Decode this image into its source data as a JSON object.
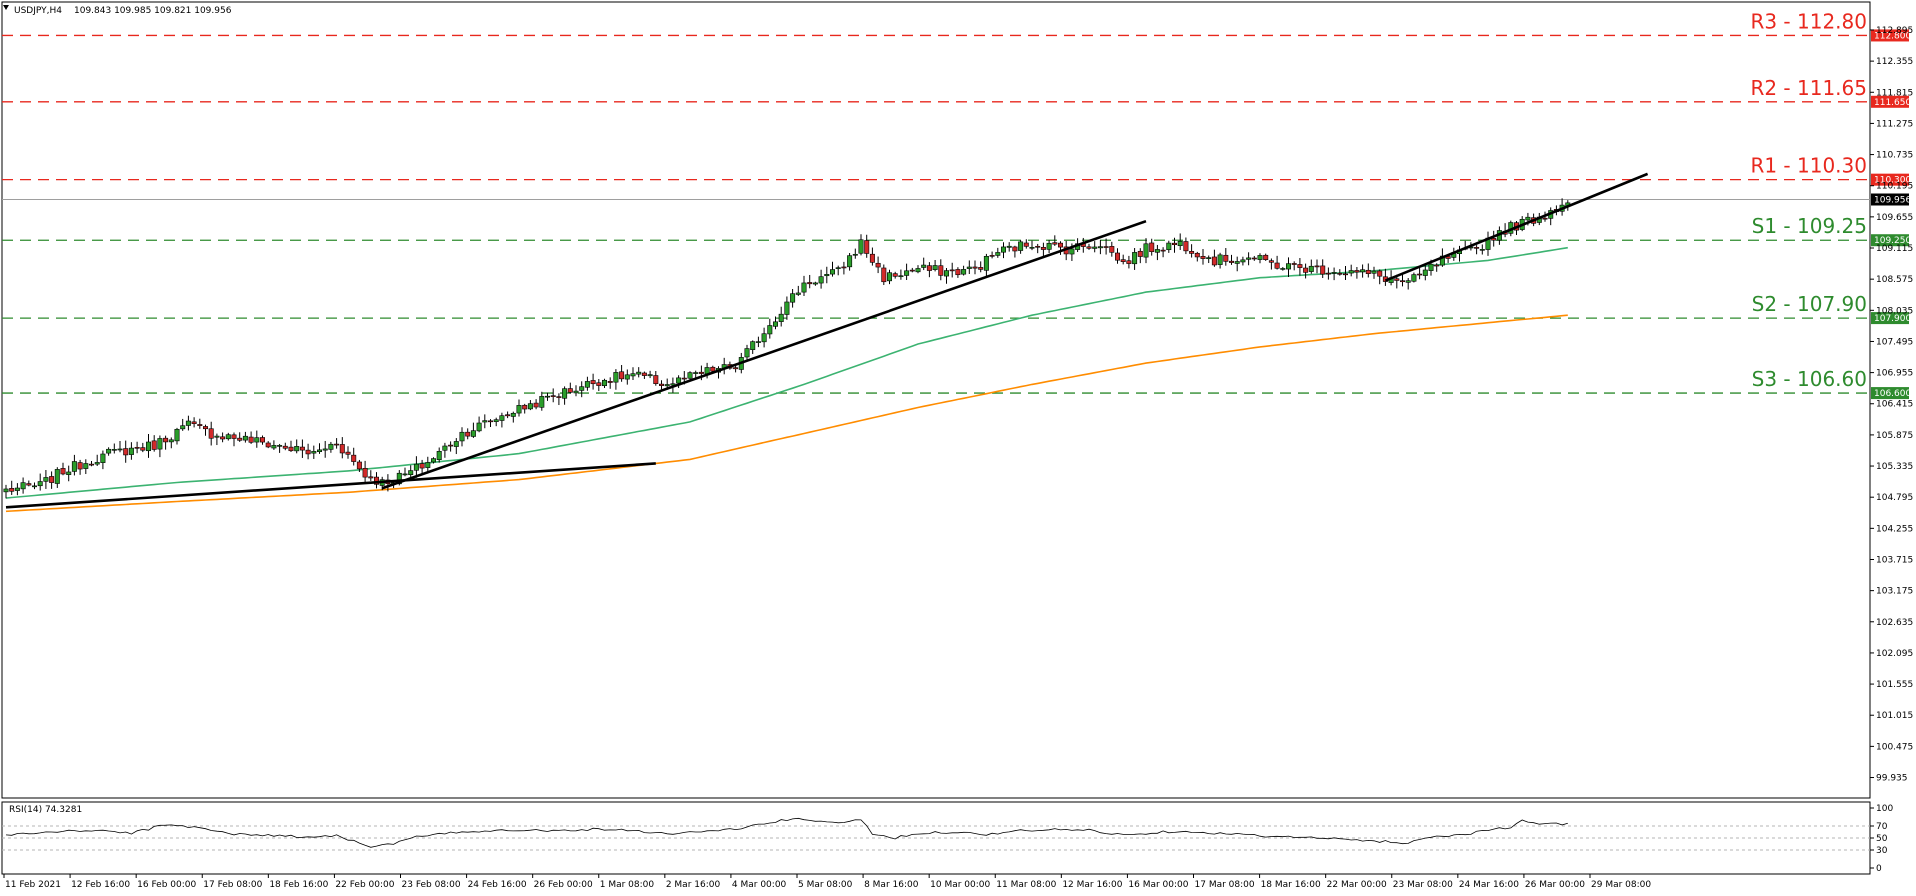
{
  "header": {
    "symbol_label": "USDJPY,H4",
    "ohlc_label": "109.843 109.985 109.821 109.956",
    "rsi_label": "RSI(14) 74.3281"
  },
  "colors": {
    "bull": "#2a9d2a",
    "bear": "#d22a2a",
    "resistance": "#e8281e",
    "support": "#2e8b2e",
    "ma_fast": "#3cb371",
    "ma_slow": "#ff8c00",
    "trendline": "#000000",
    "current_price_line": "#9e9e9e"
  },
  "chart_data": [
    {
      "type": "candlestick",
      "symbol": "USDJPY",
      "timeframe": "H4",
      "last_price": 109.956,
      "ylim": [
        99.58,
        113.38
      ],
      "y_ticks": [
        "112.895",
        "112.355",
        "111.815",
        "111.275",
        "110.735",
        "110.195",
        "109.655",
        "109.115",
        "108.575",
        "108.035",
        "107.495",
        "106.955",
        "106.415",
        "105.875",
        "105.335",
        "104.795",
        "104.255",
        "103.715",
        "103.175",
        "102.635",
        "102.095",
        "101.555",
        "101.015",
        "100.475",
        "99.935"
      ],
      "x_ticks": [
        "11 Feb 2021",
        "12 Feb 16:00",
        "16 Feb 00:00",
        "17 Feb 08:00",
        "18 Feb 16:00",
        "22 Feb 00:00",
        "23 Feb 08:00",
        "24 Feb 16:00",
        "26 Feb 00:00",
        "1 Mar 08:00",
        "2 Mar 16:00",
        "4 Mar 00:00",
        "5 Mar 08:00",
        "8 Mar 16:00",
        "10 Mar 00:00",
        "11 Mar 08:00",
        "12 Mar 16:00",
        "16 Mar 00:00",
        "17 Mar 08:00",
        "18 Mar 16:00",
        "22 Mar 00:00",
        "23 Mar 08:00",
        "24 Mar 16:00",
        "26 Mar 00:00",
        "29 Mar 08:00"
      ],
      "levels": [
        {
          "name": "R3",
          "label": "R3 - 112.80",
          "tag": "112.800",
          "price": 112.8,
          "kind": "resistance"
        },
        {
          "name": "R2",
          "label": "R2 - 111.65",
          "tag": "111.650",
          "price": 111.65,
          "kind": "resistance"
        },
        {
          "name": "R1",
          "label": "R1 - 110.30",
          "tag": "110.300",
          "price": 110.3,
          "kind": "resistance"
        },
        {
          "name": "S1",
          "label": "S1 - 109.25",
          "tag": "109.250",
          "price": 109.25,
          "kind": "support"
        },
        {
          "name": "S2",
          "label": "S2 - 107.90",
          "tag": "107.900",
          "price": 107.9,
          "kind": "support"
        },
        {
          "name": "S3",
          "label": "S3 - 106.60",
          "tag": "106.600",
          "price": 106.6,
          "kind": "support"
        }
      ],
      "current_price_tag": "109.956",
      "close_anchors": [
        [
          0,
          104.92
        ],
        [
          6,
          105.0
        ],
        [
          10,
          105.25
        ],
        [
          18,
          105.55
        ],
        [
          26,
          105.7
        ],
        [
          32,
          106.05
        ],
        [
          36,
          105.9
        ],
        [
          42,
          105.8
        ],
        [
          48,
          105.68
        ],
        [
          54,
          105.55
        ],
        [
          58,
          105.75
        ],
        [
          63,
          105.18
        ],
        [
          66,
          105.05
        ],
        [
          70,
          105.18
        ],
        [
          74,
          105.4
        ],
        [
          80,
          105.9
        ],
        [
          88,
          106.25
        ],
        [
          96,
          106.55
        ],
        [
          104,
          106.82
        ],
        [
          110,
          106.92
        ],
        [
          116,
          106.75
        ],
        [
          124,
          107.0
        ],
        [
          128,
          107.05
        ],
        [
          134,
          107.8
        ],
        [
          140,
          108.5
        ],
        [
          146,
          108.7
        ],
        [
          150,
          109.2
        ],
        [
          154,
          108.6
        ],
        [
          160,
          108.75
        ],
        [
          166,
          108.7
        ],
        [
          170,
          108.75
        ],
        [
          174,
          109.05
        ],
        [
          180,
          109.2
        ],
        [
          186,
          109.1
        ],
        [
          192,
          109.2
        ],
        [
          196,
          108.85
        ],
        [
          200,
          109.1
        ],
        [
          206,
          109.2
        ],
        [
          212,
          108.9
        ],
        [
          218,
          108.95
        ],
        [
          224,
          108.8
        ],
        [
          230,
          108.75
        ],
        [
          236,
          108.7
        ],
        [
          240,
          108.65
        ],
        [
          246,
          108.5
        ],
        [
          252,
          108.9
        ],
        [
          258,
          109.1
        ],
        [
          262,
          109.4
        ],
        [
          266,
          109.55
        ],
        [
          270,
          109.7
        ],
        [
          274,
          109.95
        ]
      ],
      "moving_averages": [
        {
          "points": [
            [
              0,
              104.78
            ],
            [
              30,
              105.05
            ],
            [
              60,
              105.25
            ],
            [
              90,
              105.55
            ],
            [
              120,
              106.1
            ],
            [
              140,
              106.75
            ],
            [
              160,
              107.45
            ],
            [
              180,
              107.95
            ],
            [
              200,
              108.35
            ],
            [
              220,
              108.6
            ],
            [
              240,
              108.72
            ],
            [
              260,
              108.9
            ],
            [
              274,
              109.12
            ]
          ]
        },
        {
          "points": [
            [
              0,
              104.55
            ],
            [
              30,
              104.72
            ],
            [
              60,
              104.88
            ],
            [
              90,
              105.1
            ],
            [
              120,
              105.45
            ],
            [
              140,
              105.9
            ],
            [
              160,
              106.35
            ],
            [
              180,
              106.75
            ],
            [
              200,
              107.12
            ],
            [
              220,
              107.4
            ],
            [
              240,
              107.63
            ],
            [
              260,
              107.82
            ],
            [
              274,
              107.95
            ]
          ]
        }
      ],
      "trendlines": [
        {
          "points": [
            [
              0,
              104.62
            ],
            [
              114,
              105.38
            ]
          ]
        },
        {
          "points": [
            [
              66,
              104.95
            ],
            [
              200,
              109.58
            ]
          ]
        },
        {
          "points": [
            [
              242,
              108.55
            ],
            [
              288,
              110.4
            ]
          ]
        }
      ],
      "rsi": {
        "ylim": [
          0,
          100
        ],
        "y_ticks": [
          "100",
          "70",
          "50",
          "30",
          "0"
        ],
        "levels": [
          70,
          50,
          30
        ],
        "last_value": 74.3281,
        "anchors": [
          [
            0,
            55
          ],
          [
            8,
            60
          ],
          [
            16,
            63
          ],
          [
            22,
            58
          ],
          [
            28,
            72
          ],
          [
            34,
            68
          ],
          [
            40,
            56
          ],
          [
            46,
            55
          ],
          [
            52,
            52
          ],
          [
            58,
            54
          ],
          [
            62,
            42
          ],
          [
            64,
            36
          ],
          [
            68,
            40
          ],
          [
            72,
            52
          ],
          [
            80,
            60
          ],
          [
            88,
            64
          ],
          [
            96,
            62
          ],
          [
            104,
            65
          ],
          [
            110,
            63
          ],
          [
            116,
            57
          ],
          [
            124,
            62
          ],
          [
            128,
            65
          ],
          [
            132,
            72
          ],
          [
            136,
            79
          ],
          [
            140,
            82
          ],
          [
            144,
            75
          ],
          [
            148,
            78
          ],
          [
            150,
            80
          ],
          [
            152,
            58
          ],
          [
            156,
            50
          ],
          [
            160,
            58
          ],
          [
            166,
            60
          ],
          [
            172,
            56
          ],
          [
            178,
            62
          ],
          [
            184,
            64
          ],
          [
            190,
            63
          ],
          [
            196,
            55
          ],
          [
            200,
            58
          ],
          [
            206,
            62
          ],
          [
            212,
            58
          ],
          [
            218,
            55
          ],
          [
            224,
            52
          ],
          [
            230,
            50
          ],
          [
            236,
            47
          ],
          [
            242,
            44
          ],
          [
            246,
            42
          ],
          [
            250,
            52
          ],
          [
            256,
            56
          ],
          [
            260,
            64
          ],
          [
            264,
            67
          ],
          [
            266,
            78
          ],
          [
            270,
            73
          ],
          [
            274,
            74
          ]
        ]
      }
    }
  ]
}
